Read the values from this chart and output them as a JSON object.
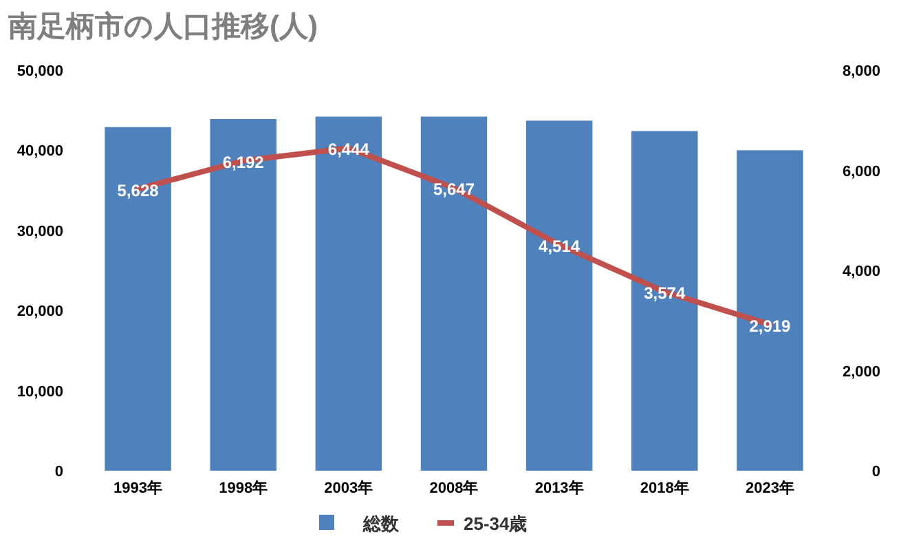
{
  "chart_data": {
    "type": "bar",
    "title": "南足柄市の人口推移(人)",
    "categories": [
      "1993年",
      "1998年",
      "2003年",
      "2008年",
      "2013年",
      "2018年",
      "2023年"
    ],
    "series": [
      {
        "name": "総数",
        "color": "#4f81bd",
        "values": [
          42900,
          43900,
          44200,
          44200,
          43700,
          42400,
          40000
        ]
      },
      {
        "name": "25-34歳",
        "type": "line",
        "axis": "y2",
        "color": "#c0504d",
        "values": [
          5628,
          6192,
          6444,
          5647,
          4514,
          3574,
          2919
        ],
        "value_labels": [
          "5,628",
          "6,192",
          "6,444",
          "5,647",
          "4,514",
          "3,574",
          "2,919"
        ]
      }
    ],
    "ylim": [
      0,
      50000
    ],
    "yticks": [
      0,
      {
        "value": 10000,
        "label": "10,000"
      },
      {
        "value": 20000,
        "label": "20,000"
      },
      {
        "value": 30000,
        "label": "30,000"
      },
      {
        "value": 40000,
        "label": "40,000"
      },
      {
        "value": 50000,
        "label": "50,000"
      }
    ],
    "y2lim": [
      0,
      8000
    ],
    "y2ticks": [
      0,
      {
        "value": 2000,
        "label": "2,000"
      },
      {
        "value": 4000,
        "label": "4,000"
      },
      {
        "value": 6000,
        "label": "6,000"
      },
      {
        "value": 8000,
        "label": "8,000"
      }
    ],
    "grid": false,
    "legend": "bottom"
  }
}
